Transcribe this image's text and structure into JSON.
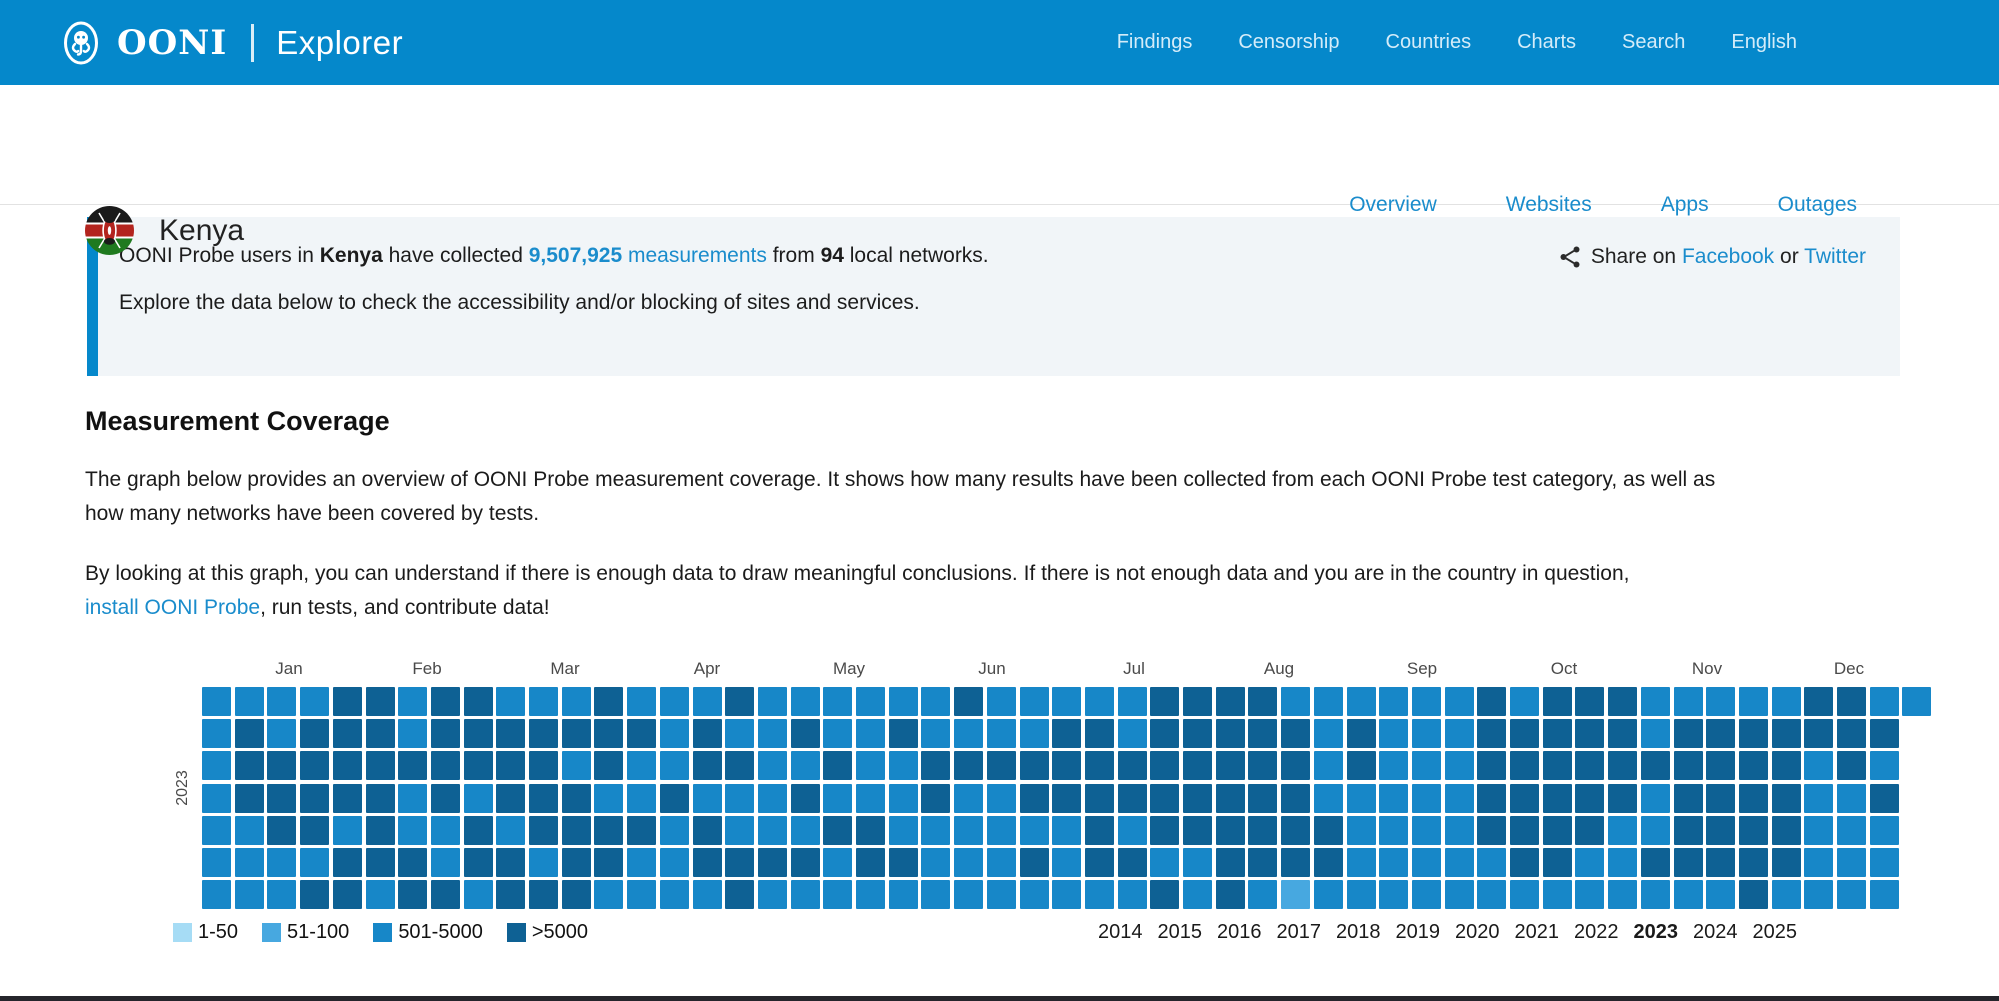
{
  "colors": {
    "header_bg": "#0588cb",
    "link_blue": "#1a8ccc",
    "callout_bg": "#f1f5f8",
    "footer_bar": "#25252b"
  },
  "header": {
    "brand": "OONI",
    "product": "Explorer",
    "nav": [
      "Findings",
      "Censorship",
      "Countries",
      "Charts",
      "Search",
      "English"
    ]
  },
  "country_header": {
    "name": "Kenya",
    "tabs": [
      "Overview",
      "Websites",
      "Apps",
      "Outages"
    ],
    "share": {
      "prefix": "Share on ",
      "facebook": "Facebook",
      "or": " or ",
      "twitter": "Twitter"
    }
  },
  "intro": {
    "p1": "OONI Probe users in ",
    "country": "Kenya",
    "p2": " have collected ",
    "count": "9,507,925",
    "measurements": " measurements",
    "p3": " from ",
    "networks": "94",
    "p4": " local networks.",
    "line2": "Explore the data below to check the accessibility and/or blocking of sites and services."
  },
  "coverage": {
    "title": "Measurement Coverage",
    "para1_line1": "The graph below provides an overview of OONI Probe measurement coverage. It shows how many results have been collected from each OONI Probe test category, as well as",
    "para1_line2": "how many networks have been covered by tests.",
    "para2_line1": "By looking at this graph, you can understand if there is enough data to draw meaningful conclusions. If there is not enough data and you are in the country in question,",
    "para2_link": "install OONI Probe",
    "para2_rest": ", run tests, and contribute data!"
  },
  "chart_data": {
    "type": "heatmap",
    "title": "OONI Probe measurement coverage calendar, Kenya 2023",
    "year_label": "2023",
    "months": [
      "Jan",
      "Feb",
      "Mar",
      "Apr",
      "May",
      "Jun",
      "Jul",
      "Aug",
      "Sep",
      "Oct",
      "Nov",
      "Dec"
    ],
    "month_start_days": [
      0,
      31,
      59,
      90,
      120,
      151,
      181,
      212,
      243,
      273,
      304,
      334,
      365
    ],
    "weeks": 53,
    "rows_per_week": 7,
    "legend": [
      {
        "label": "1-50",
        "color": "#a6dcf5"
      },
      {
        "label": "51-100",
        "color": "#47a8e0"
      },
      {
        "label": "501-5000",
        "color": "#1787c8"
      },
      {
        "label": ">5000",
        "color": "#0e6194"
      }
    ],
    "level_colors": {
      "1": "#a6dcf5",
      "2": "#47a8e0",
      "3": "#1787c8",
      "4": "#0e6194"
    },
    "years": [
      "2014",
      "2015",
      "2016",
      "2017",
      "2018",
      "2019",
      "2020",
      "2021",
      "2022",
      "2023",
      "2024",
      "2025"
    ],
    "active_year": "2023",
    "grid": [
      [
        3,
        3,
        3,
        3,
        4,
        4,
        3,
        4,
        4,
        3,
        3,
        3,
        4,
        3,
        3,
        3,
        4,
        3,
        3,
        3,
        3,
        3,
        3,
        4,
        3,
        3,
        3,
        3,
        3,
        4,
        4,
        4,
        4,
        3,
        3,
        3,
        3,
        3,
        3,
        4,
        3,
        4,
        4,
        4,
        3,
        3,
        3,
        3,
        3,
        4,
        4,
        3,
        3
      ],
      [
        3,
        4,
        3,
        4,
        4,
        4,
        3,
        4,
        4,
        4,
        4,
        4,
        4,
        4,
        3,
        4,
        3,
        3,
        4,
        3,
        3,
        4,
        3,
        3,
        3,
        3,
        4,
        4,
        3,
        4,
        4,
        4,
        4,
        4,
        3,
        4,
        3,
        3,
        3,
        4,
        4,
        4,
        4,
        4,
        3,
        4,
        4,
        4,
        4,
        4,
        4,
        4,
        0
      ],
      [
        3,
        4,
        4,
        4,
        4,
        4,
        4,
        4,
        4,
        4,
        4,
        3,
        4,
        3,
        3,
        4,
        4,
        3,
        3,
        4,
        3,
        3,
        4,
        4,
        4,
        4,
        4,
        4,
        4,
        4,
        4,
        4,
        4,
        4,
        3,
        4,
        3,
        3,
        3,
        4,
        4,
        4,
        4,
        4,
        4,
        4,
        4,
        4,
        4,
        3,
        4,
        3,
        0
      ],
      [
        3,
        4,
        4,
        4,
        4,
        4,
        3,
        4,
        3,
        4,
        4,
        4,
        3,
        3,
        4,
        3,
        3,
        3,
        4,
        3,
        3,
        3,
        4,
        3,
        3,
        4,
        4,
        4,
        4,
        4,
        4,
        4,
        4,
        4,
        3,
        3,
        3,
        3,
        3,
        4,
        4,
        4,
        4,
        4,
        3,
        4,
        4,
        4,
        4,
        3,
        3,
        4,
        0
      ],
      [
        3,
        3,
        4,
        4,
        3,
        4,
        3,
        3,
        4,
        3,
        4,
        4,
        4,
        4,
        3,
        4,
        3,
        3,
        3,
        4,
        4,
        3,
        3,
        3,
        3,
        3,
        3,
        4,
        3,
        4,
        4,
        4,
        4,
        4,
        4,
        3,
        3,
        3,
        3,
        4,
        4,
        4,
        4,
        3,
        3,
        4,
        4,
        4,
        4,
        3,
        3,
        3,
        0
      ],
      [
        3,
        3,
        3,
        3,
        4,
        4,
        4,
        3,
        4,
        4,
        3,
        4,
        4,
        3,
        3,
        4,
        4,
        4,
        4,
        3,
        4,
        4,
        3,
        3,
        3,
        4,
        3,
        4,
        4,
        3,
        3,
        4,
        4,
        4,
        4,
        3,
        3,
        3,
        3,
        3,
        4,
        4,
        3,
        3,
        4,
        4,
        4,
        4,
        4,
        3,
        3,
        3,
        0
      ],
      [
        3,
        3,
        3,
        4,
        4,
        3,
        4,
        4,
        3,
        4,
        4,
        4,
        3,
        3,
        3,
        3,
        4,
        3,
        3,
        3,
        3,
        3,
        3,
        3,
        3,
        3,
        3,
        3,
        3,
        4,
        3,
        4,
        3,
        2,
        3,
        3,
        3,
        3,
        3,
        3,
        3,
        3,
        3,
        3,
        3,
        3,
        3,
        4,
        3,
        3,
        3,
        3,
        0
      ]
    ]
  }
}
